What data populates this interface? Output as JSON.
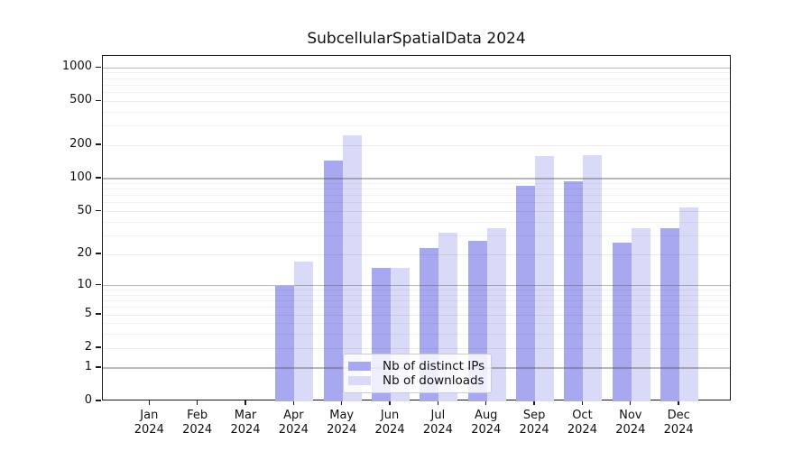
{
  "chart_data": {
    "type": "bar",
    "title": "SubcellularSpatialData 2024",
    "categories": [
      "Jan",
      "Feb",
      "Mar",
      "Apr",
      "May",
      "Jun",
      "Jul",
      "Aug",
      "Sep",
      "Oct",
      "Nov",
      "Dec"
    ],
    "year_label": "2024",
    "series": [
      {
        "name": "Nb of distinct IPs",
        "color": "#a8a8f0",
        "values": [
          0,
          0,
          0,
          10,
          145,
          15,
          23,
          27,
          86,
          94,
          26,
          35
        ]
      },
      {
        "name": "Nb of downloads",
        "color": "#d9d9f8",
        "values": [
          0,
          0,
          0,
          17,
          245,
          15,
          32,
          35,
          160,
          163,
          35,
          55
        ]
      }
    ],
    "yscale": "symlog-log1p",
    "ylim": [
      0,
      1280
    ],
    "yticks": [
      0,
      1,
      2,
      5,
      10,
      20,
      50,
      100,
      200,
      500,
      1000
    ],
    "decade_ticks": [
      1,
      10,
      100,
      1000
    ],
    "minor_ticks": [
      3,
      4,
      6,
      7,
      8,
      9,
      30,
      40,
      60,
      70,
      80,
      90,
      300,
      400,
      600,
      700,
      800,
      900
    ],
    "grid": "horizontal",
    "legend_position": "lower center",
    "background_color": "#ffffff",
    "axis_color": "#1a1a1a"
  }
}
